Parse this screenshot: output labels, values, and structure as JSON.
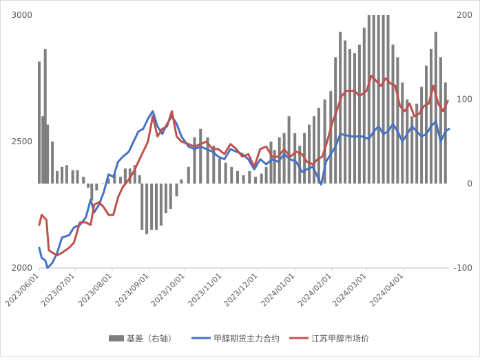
{
  "chart_data": {
    "type": "bar+line",
    "title": "",
    "ylabel": "",
    "y2label": "",
    "left_axis": {
      "ylim": [
        2000,
        3000
      ],
      "ticks": [
        "2000",
        "2500",
        "3000"
      ]
    },
    "right_axis": {
      "ylim": [
        -100,
        200
      ],
      "ticks": [
        "-100",
        "0",
        "100",
        "200"
      ]
    },
    "x_axis": {
      "range": [
        "2023-06-01",
        "2024-05-09"
      ],
      "ticks": [
        "2023/06/01",
        "2023/07/01",
        "2023/08/01",
        "2023/09/01",
        "2023/10/01",
        "2023/11/01",
        "2023/12/01",
        "2024/01/01",
        "2024/02/01",
        "2024/03/01",
        "2024/04/01"
      ]
    },
    "legend_position": "bottom",
    "series": [
      {
        "name": "基差（右轴）",
        "type": "bar",
        "axis": "right",
        "color": "#7f7f7f",
        "points": [
          [
            "2023-06-01",
            145
          ],
          [
            "2023-06-04",
            80
          ],
          [
            "2023-06-06",
            160
          ],
          [
            "2023-06-08",
            70
          ],
          [
            "2023-06-12",
            50
          ],
          [
            "2023-06-16",
            15
          ],
          [
            "2023-06-20",
            20
          ],
          [
            "2023-06-24",
            22
          ],
          [
            "2023-06-29",
            16
          ],
          [
            "2023-07-03",
            16
          ],
          [
            "2023-07-08",
            8
          ],
          [
            "2023-07-12",
            -5
          ],
          [
            "2023-07-15",
            -20
          ],
          [
            "2023-07-19",
            -8
          ],
          [
            "2023-07-24",
            0
          ],
          [
            "2023-07-29",
            6
          ],
          [
            "2023-08-03",
            12
          ],
          [
            "2023-08-08",
            8
          ],
          [
            "2023-08-12",
            18
          ],
          [
            "2023-08-16",
            18
          ],
          [
            "2023-08-20",
            22
          ],
          [
            "2023-08-24",
            10
          ],
          [
            "2023-08-26",
            -55
          ],
          [
            "2023-08-30",
            -60
          ],
          [
            "2023-09-03",
            -55
          ],
          [
            "2023-09-07",
            -55
          ],
          [
            "2023-09-11",
            -50
          ],
          [
            "2023-09-15",
            -35
          ],
          [
            "2023-09-19",
            -30
          ],
          [
            "2023-09-24",
            -15
          ],
          [
            "2023-09-28",
            5
          ],
          [
            "2023-10-04",
            20
          ],
          [
            "2023-10-09",
            55
          ],
          [
            "2023-10-14",
            65
          ],
          [
            "2023-10-20",
            55
          ],
          [
            "2023-10-25",
            45
          ],
          [
            "2023-10-30",
            30
          ],
          [
            "2023-11-04",
            25
          ],
          [
            "2023-11-09",
            20
          ],
          [
            "2023-11-14",
            15
          ],
          [
            "2023-11-19",
            10
          ],
          [
            "2023-11-24",
            15
          ],
          [
            "2023-11-29",
            8
          ],
          [
            "2023-12-04",
            12
          ],
          [
            "2023-12-08",
            20
          ],
          [
            "2023-12-12",
            50
          ],
          [
            "2023-12-15",
            40
          ],
          [
            "2023-12-19",
            55
          ],
          [
            "2023-12-23",
            60
          ],
          [
            "2023-12-27",
            80
          ],
          [
            "2024-01-01",
            60
          ],
          [
            "2024-01-05",
            45
          ],
          [
            "2024-01-09",
            60
          ],
          [
            "2024-01-13",
            70
          ],
          [
            "2024-01-17",
            80
          ],
          [
            "2024-01-21",
            90
          ],
          [
            "2024-01-26",
            100
          ],
          [
            "2024-01-31",
            110
          ],
          [
            "2024-02-04",
            150
          ],
          [
            "2024-02-08",
            180
          ],
          [
            "2024-02-12",
            170
          ],
          [
            "2024-02-16",
            160
          ],
          [
            "2024-02-20",
            155
          ],
          [
            "2024-02-24",
            165
          ],
          [
            "2024-02-28",
            185
          ],
          [
            "2024-03-03",
            200
          ],
          [
            "2024-03-07",
            200
          ],
          [
            "2024-03-11",
            200
          ],
          [
            "2024-03-15",
            200
          ],
          [
            "2024-03-19",
            200
          ],
          [
            "2024-03-23",
            165
          ],
          [
            "2024-03-27",
            150
          ],
          [
            "2024-03-31",
            120
          ],
          [
            "2024-04-04",
            100
          ],
          [
            "2024-04-08",
            80
          ],
          [
            "2024-04-12",
            95
          ],
          [
            "2024-04-16",
            115
          ],
          [
            "2024-04-20",
            140
          ],
          [
            "2024-04-24",
            160
          ],
          [
            "2024-04-28",
            180
          ],
          [
            "2024-05-02",
            150
          ],
          [
            "2024-05-06",
            120
          ]
        ]
      },
      {
        "name": "甲醇期货主力合约",
        "type": "line",
        "axis": "left",
        "color": "#4472c4",
        "points": [
          [
            "2023-06-01",
            2080
          ],
          [
            "2023-06-03",
            2040
          ],
          [
            "2023-06-06",
            2030
          ],
          [
            "2023-06-08",
            2000
          ],
          [
            "2023-06-12",
            2020
          ],
          [
            "2023-06-16",
            2060
          ],
          [
            "2023-06-20",
            2120
          ],
          [
            "2023-06-26",
            2130
          ],
          [
            "2023-06-30",
            2160
          ],
          [
            "2023-07-05",
            2170
          ],
          [
            "2023-07-10",
            2200
          ],
          [
            "2023-07-14",
            2270
          ],
          [
            "2023-07-17",
            2220
          ],
          [
            "2023-07-21",
            2250
          ],
          [
            "2023-07-25",
            2300
          ],
          [
            "2023-07-29",
            2370
          ],
          [
            "2023-08-02",
            2360
          ],
          [
            "2023-08-06",
            2420
          ],
          [
            "2023-08-10",
            2440
          ],
          [
            "2023-08-15",
            2460
          ],
          [
            "2023-08-19",
            2500
          ],
          [
            "2023-08-23",
            2540
          ],
          [
            "2023-08-27",
            2550
          ],
          [
            "2023-08-31",
            2590
          ],
          [
            "2023-09-04",
            2620
          ],
          [
            "2023-09-08",
            2560
          ],
          [
            "2023-09-12",
            2530
          ],
          [
            "2023-09-16",
            2570
          ],
          [
            "2023-09-20",
            2600
          ],
          [
            "2023-09-24",
            2570
          ],
          [
            "2023-09-28",
            2520
          ],
          [
            "2023-10-04",
            2480
          ],
          [
            "2023-10-09",
            2470
          ],
          [
            "2023-10-14",
            2480
          ],
          [
            "2023-10-19",
            2470
          ],
          [
            "2023-10-24",
            2460
          ],
          [
            "2023-10-29",
            2440
          ],
          [
            "2023-11-03",
            2430
          ],
          [
            "2023-11-08",
            2470
          ],
          [
            "2023-11-13",
            2460
          ],
          [
            "2023-11-18",
            2450
          ],
          [
            "2023-11-23",
            2430
          ],
          [
            "2023-11-28",
            2390
          ],
          [
            "2023-12-03",
            2430
          ],
          [
            "2023-12-08",
            2410
          ],
          [
            "2023-12-13",
            2430
          ],
          [
            "2023-12-18",
            2420
          ],
          [
            "2023-12-23",
            2450
          ],
          [
            "2023-12-28",
            2430
          ],
          [
            "2024-01-02",
            2420
          ],
          [
            "2024-01-07",
            2380
          ],
          [
            "2024-01-11",
            2390
          ],
          [
            "2024-01-16",
            2400
          ],
          [
            "2024-01-20",
            2360
          ],
          [
            "2024-01-23",
            2330
          ],
          [
            "2024-01-27",
            2420
          ],
          [
            "2024-01-31",
            2450
          ],
          [
            "2024-02-04",
            2480
          ],
          [
            "2024-02-08",
            2530
          ],
          [
            "2024-02-17",
            2520
          ],
          [
            "2024-02-26",
            2520
          ],
          [
            "2024-03-03",
            2510
          ],
          [
            "2024-03-07",
            2540
          ],
          [
            "2024-03-11",
            2560
          ],
          [
            "2024-03-15",
            2530
          ],
          [
            "2024-03-19",
            2540
          ],
          [
            "2024-03-23",
            2570
          ],
          [
            "2024-03-27",
            2540
          ],
          [
            "2024-03-31",
            2500
          ],
          [
            "2024-04-04",
            2530
          ],
          [
            "2024-04-08",
            2560
          ],
          [
            "2024-04-12",
            2540
          ],
          [
            "2024-04-16",
            2520
          ],
          [
            "2024-04-20",
            2530
          ],
          [
            "2024-04-24",
            2560
          ],
          [
            "2024-04-28",
            2580
          ],
          [
            "2024-05-02",
            2500
          ],
          [
            "2024-05-06",
            2540
          ],
          [
            "2024-05-09",
            2550
          ]
        ]
      },
      {
        "name": "江苏甲醇市场价",
        "type": "line",
        "axis": "left",
        "color": "#c0504d",
        "points": [
          [
            "2023-06-01",
            2170
          ],
          [
            "2023-06-03",
            2210
          ],
          [
            "2023-06-05",
            2200
          ],
          [
            "2023-06-07",
            2190
          ],
          [
            "2023-06-09",
            2070
          ],
          [
            "2023-06-12",
            2060
          ],
          [
            "2023-06-16",
            2050
          ],
          [
            "2023-06-20",
            2060
          ],
          [
            "2023-06-26",
            2080
          ],
          [
            "2023-06-30",
            2100
          ],
          [
            "2023-07-05",
            2180
          ],
          [
            "2023-07-10",
            2180
          ],
          [
            "2023-07-14",
            2170
          ],
          [
            "2023-07-17",
            2250
          ],
          [
            "2023-07-21",
            2260
          ],
          [
            "2023-07-25",
            2240
          ],
          [
            "2023-07-29",
            2210
          ],
          [
            "2023-08-02",
            2210
          ],
          [
            "2023-08-06",
            2280
          ],
          [
            "2023-08-10",
            2320
          ],
          [
            "2023-08-15",
            2350
          ],
          [
            "2023-08-19",
            2380
          ],
          [
            "2023-08-23",
            2420
          ],
          [
            "2023-08-27",
            2460
          ],
          [
            "2023-08-31",
            2500
          ],
          [
            "2023-09-04",
            2600
          ],
          [
            "2023-09-08",
            2520
          ],
          [
            "2023-09-12",
            2550
          ],
          [
            "2023-09-16",
            2560
          ],
          [
            "2023-09-20",
            2620
          ],
          [
            "2023-09-24",
            2520
          ],
          [
            "2023-09-28",
            2500
          ],
          [
            "2023-10-04",
            2490
          ],
          [
            "2023-10-09",
            2480
          ],
          [
            "2023-10-14",
            2490
          ],
          [
            "2023-10-19",
            2500
          ],
          [
            "2023-10-24",
            2470
          ],
          [
            "2023-10-29",
            2470
          ],
          [
            "2023-11-03",
            2450
          ],
          [
            "2023-11-08",
            2490
          ],
          [
            "2023-11-13",
            2470
          ],
          [
            "2023-11-18",
            2440
          ],
          [
            "2023-11-23",
            2450
          ],
          [
            "2023-11-28",
            2400
          ],
          [
            "2023-12-03",
            2470
          ],
          [
            "2023-12-08",
            2480
          ],
          [
            "2023-12-13",
            2440
          ],
          [
            "2023-12-18",
            2440
          ],
          [
            "2023-12-23",
            2470
          ],
          [
            "2023-12-28",
            2440
          ],
          [
            "2024-01-02",
            2460
          ],
          [
            "2024-01-07",
            2450
          ],
          [
            "2024-01-11",
            2420
          ],
          [
            "2024-01-16",
            2410
          ],
          [
            "2024-01-20",
            2430
          ],
          [
            "2024-01-24",
            2440
          ],
          [
            "2024-01-28",
            2500
          ],
          [
            "2024-02-01",
            2570
          ],
          [
            "2024-02-05",
            2620
          ],
          [
            "2024-02-09",
            2680
          ],
          [
            "2024-02-13",
            2700
          ],
          [
            "2024-02-20",
            2700
          ],
          [
            "2024-02-24",
            2680
          ],
          [
            "2024-03-01",
            2700
          ],
          [
            "2024-03-05",
            2760
          ],
          [
            "2024-03-09",
            2740
          ],
          [
            "2024-03-13",
            2720
          ],
          [
            "2024-03-17",
            2750
          ],
          [
            "2024-03-21",
            2730
          ],
          [
            "2024-03-25",
            2720
          ],
          [
            "2024-03-29",
            2640
          ],
          [
            "2024-04-02",
            2620
          ],
          [
            "2024-04-06",
            2650
          ],
          [
            "2024-04-10",
            2600
          ],
          [
            "2024-04-14",
            2610
          ],
          [
            "2024-04-18",
            2640
          ],
          [
            "2024-04-22",
            2650
          ],
          [
            "2024-04-26",
            2720
          ],
          [
            "2024-04-30",
            2650
          ],
          [
            "2024-05-04",
            2620
          ],
          [
            "2024-05-08",
            2660
          ]
        ]
      }
    ]
  }
}
